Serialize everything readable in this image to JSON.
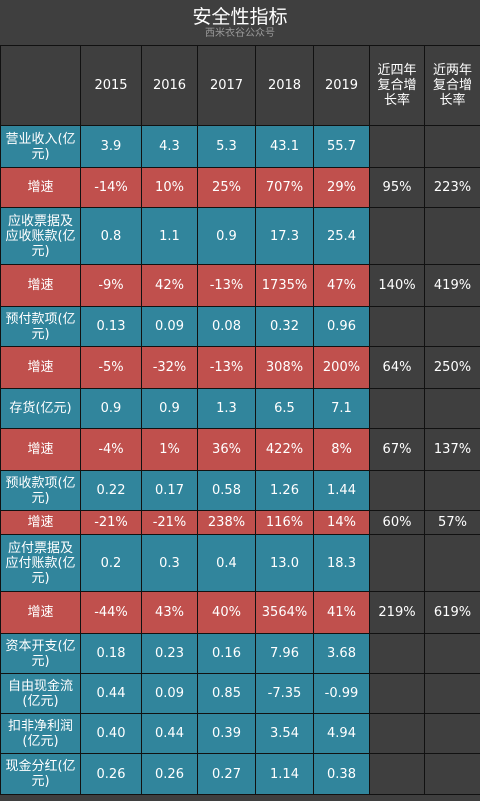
{
  "title": "安全性指标",
  "watermark": "西米衣谷公众号",
  "colors": {
    "metric_row": "#31859c",
    "growth_row": "#c0504d",
    "background": "#3f3f3f"
  },
  "chart_data": {
    "type": "table",
    "columns": [
      "",
      "2015",
      "2016",
      "2017",
      "2018",
      "2019",
      "近四年复合增长率",
      "近两年复合增长率"
    ],
    "rows": [
      {
        "label": "营业收入(亿元)",
        "kind": "metric",
        "values": [
          "3.9",
          "4.3",
          "5.3",
          "43.1",
          "55.7"
        ],
        "cagr4": "",
        "cagr2": ""
      },
      {
        "label": "增速",
        "kind": "growth",
        "values": [
          "-14%",
          "10%",
          "25%",
          "707%",
          "29%"
        ],
        "cagr4": "95%",
        "cagr2": "223%"
      },
      {
        "label": "应收票据及应收账款(亿元)",
        "kind": "metric",
        "values": [
          "0.8",
          "1.1",
          "0.9",
          "17.3",
          "25.4"
        ],
        "cagr4": "",
        "cagr2": ""
      },
      {
        "label": "增速",
        "kind": "growth",
        "values": [
          "-9%",
          "42%",
          "-13%",
          "1735%",
          "47%"
        ],
        "cagr4": "140%",
        "cagr2": "419%"
      },
      {
        "label": "预付款项(亿元)",
        "kind": "metric",
        "values": [
          "0.13",
          "0.09",
          "0.08",
          "0.32",
          "0.96"
        ],
        "cagr4": "",
        "cagr2": ""
      },
      {
        "label": "增速",
        "kind": "growth",
        "values": [
          "-5%",
          "-32%",
          "-13%",
          "308%",
          "200%"
        ],
        "cagr4": "64%",
        "cagr2": "250%"
      },
      {
        "label": "存货(亿元)",
        "kind": "metric",
        "values": [
          "0.9",
          "0.9",
          "1.3",
          "6.5",
          "7.1"
        ],
        "cagr4": "",
        "cagr2": ""
      },
      {
        "label": "增速",
        "kind": "growth",
        "values": [
          "-4%",
          "1%",
          "36%",
          "422%",
          "8%"
        ],
        "cagr4": "67%",
        "cagr2": "137%"
      },
      {
        "label": "预收款项(亿元)",
        "kind": "metric",
        "values": [
          "0.22",
          "0.17",
          "0.58",
          "1.26",
          "1.44"
        ],
        "cagr4": "",
        "cagr2": ""
      },
      {
        "label": "增速",
        "kind": "growth",
        "values": [
          "-21%",
          "-21%",
          "238%",
          "116%",
          "14%"
        ],
        "cagr4": "60%",
        "cagr2": "57%"
      },
      {
        "label": "应付票据及应付账款(亿元)",
        "kind": "metric",
        "values": [
          "0.2",
          "0.3",
          "0.4",
          "13.0",
          "18.3"
        ],
        "cagr4": "",
        "cagr2": ""
      },
      {
        "label": "增速",
        "kind": "growth",
        "values": [
          "-44%",
          "43%",
          "40%",
          "3564%",
          "41%"
        ],
        "cagr4": "219%",
        "cagr2": "619%"
      },
      {
        "label": "资本开支(亿元)",
        "kind": "metric",
        "values": [
          "0.18",
          "0.23",
          "0.16",
          "7.96",
          "3.68"
        ],
        "cagr4": "",
        "cagr2": ""
      },
      {
        "label": "自由现金流(亿元)",
        "kind": "metric",
        "values": [
          "0.44",
          "0.09",
          "0.85",
          "-7.35",
          "-0.99"
        ],
        "cagr4": "",
        "cagr2": ""
      },
      {
        "label": "扣非净利润(亿元)",
        "kind": "metric",
        "values": [
          "0.40",
          "0.44",
          "0.39",
          "3.54",
          "4.94"
        ],
        "cagr4": "",
        "cagr2": ""
      },
      {
        "label": "现金分红(亿元)",
        "kind": "metric",
        "values": [
          "0.26",
          "0.26",
          "0.27",
          "1.14",
          "0.38"
        ],
        "cagr4": "",
        "cagr2": ""
      }
    ]
  }
}
